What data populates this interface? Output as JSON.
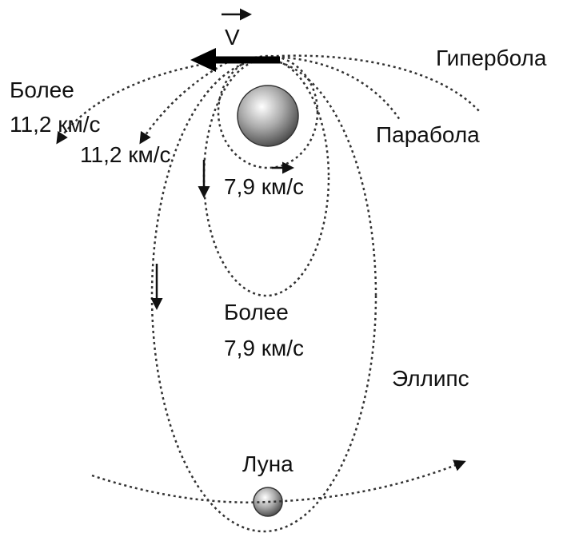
{
  "velocity_label": "V",
  "hyperbola_label": "Гипербола",
  "left_speed_label": [
    "Более",
    "11,2 км/с"
  ],
  "escape_speed_label": "11,2 км/с",
  "parabola_label": "Парабола",
  "circular_speed_label": "7,9 км/с",
  "ellipse_speed_label": [
    "Более",
    "7,9 км/с"
  ],
  "ellipse_label": "Эллипс",
  "moon_label": "Луна"
}
